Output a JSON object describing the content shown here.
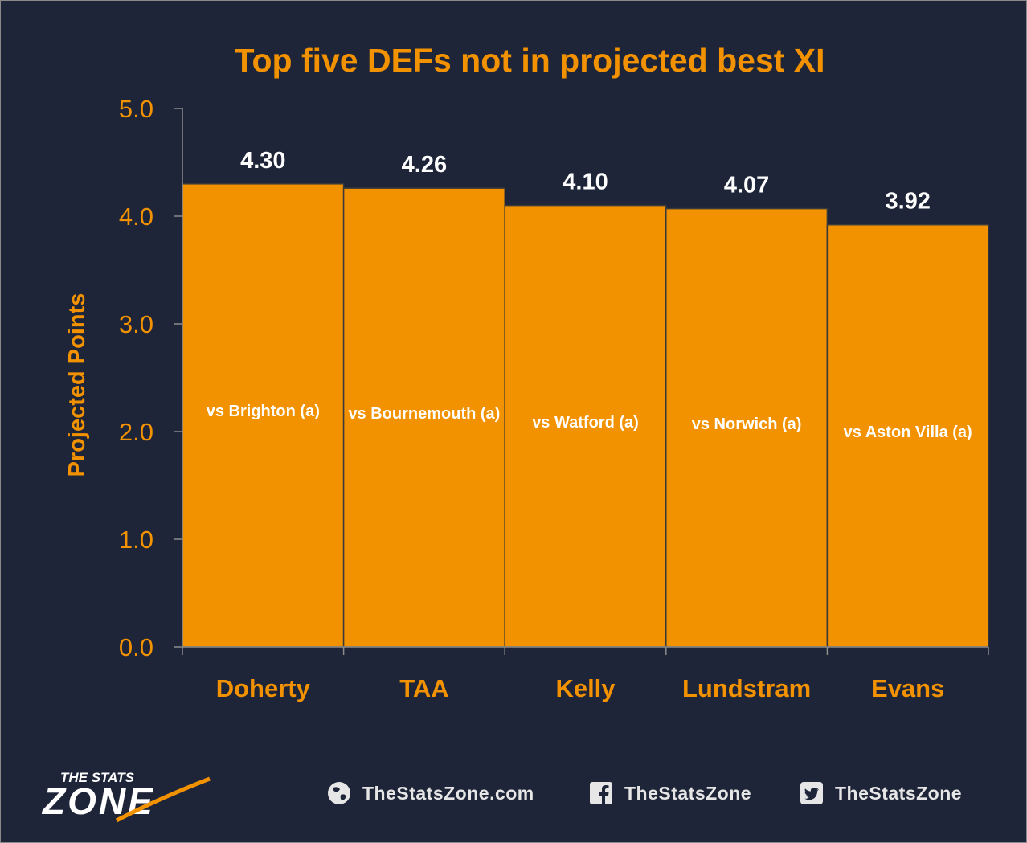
{
  "chart_data": {
    "type": "bar",
    "title": "Top five DEFs not in projected best XI",
    "ylabel": "Projected Points",
    "xlabel": "",
    "ylim": [
      0,
      5
    ],
    "yticks": [
      "0.0",
      "1.0",
      "2.0",
      "3.0",
      "4.0",
      "5.0"
    ],
    "grid": false,
    "categories": [
      "Doherty",
      "TAA",
      "Kelly",
      "Lundstram",
      "Evans"
    ],
    "values": [
      4.3,
      4.26,
      4.1,
      4.07,
      3.92
    ],
    "value_labels": [
      "4.30",
      "4.26",
      "4.10",
      "4.07",
      "3.92"
    ],
    "bar_annotations": [
      "vs Brighton (a)",
      "vs Bournemouth (a)",
      "vs Watford (a)",
      "vs Norwich (a)",
      "vs Aston Villa (a)"
    ],
    "bar_color": "#f39200",
    "accent_color": "#f39200",
    "background_color": "#1e2538"
  },
  "footer": {
    "logo_line1": "THE STATS",
    "logo_line2": "ZONE",
    "website": "TheStatsZone.com",
    "facebook": "TheStatsZone",
    "twitter": "TheStatsZone",
    "website_icon": "globe-icon",
    "facebook_icon": "facebook-icon",
    "twitter_icon": "twitter-icon"
  }
}
